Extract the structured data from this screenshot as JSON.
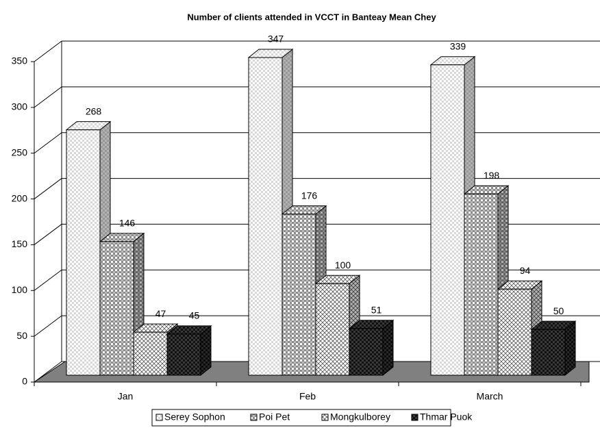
{
  "chart_data": {
    "type": "bar3d",
    "title": "Number of clients attended in VCCT in Banteay Mean Chey",
    "categories": [
      "Jan",
      "Feb",
      "March"
    ],
    "series": [
      {
        "name": "Serey Sophon",
        "color": "#d8d8d8",
        "values": [
          268,
          347,
          339
        ]
      },
      {
        "name": "Poi Pet",
        "color": "#8c8c8c",
        "values": [
          146,
          176,
          198
        ]
      },
      {
        "name": "Mongkulborey",
        "color": "#ffffff",
        "values": [
          47,
          100,
          94
        ]
      },
      {
        "name": "Thmar Puok",
        "color": "#3a3a3a",
        "values": [
          45,
          51,
          50
        ]
      }
    ],
    "ylim": [
      0,
      350
    ],
    "yticks": [
      0,
      50,
      100,
      150,
      200,
      250,
      300,
      350
    ],
    "grid": true,
    "legend": "bottom"
  }
}
